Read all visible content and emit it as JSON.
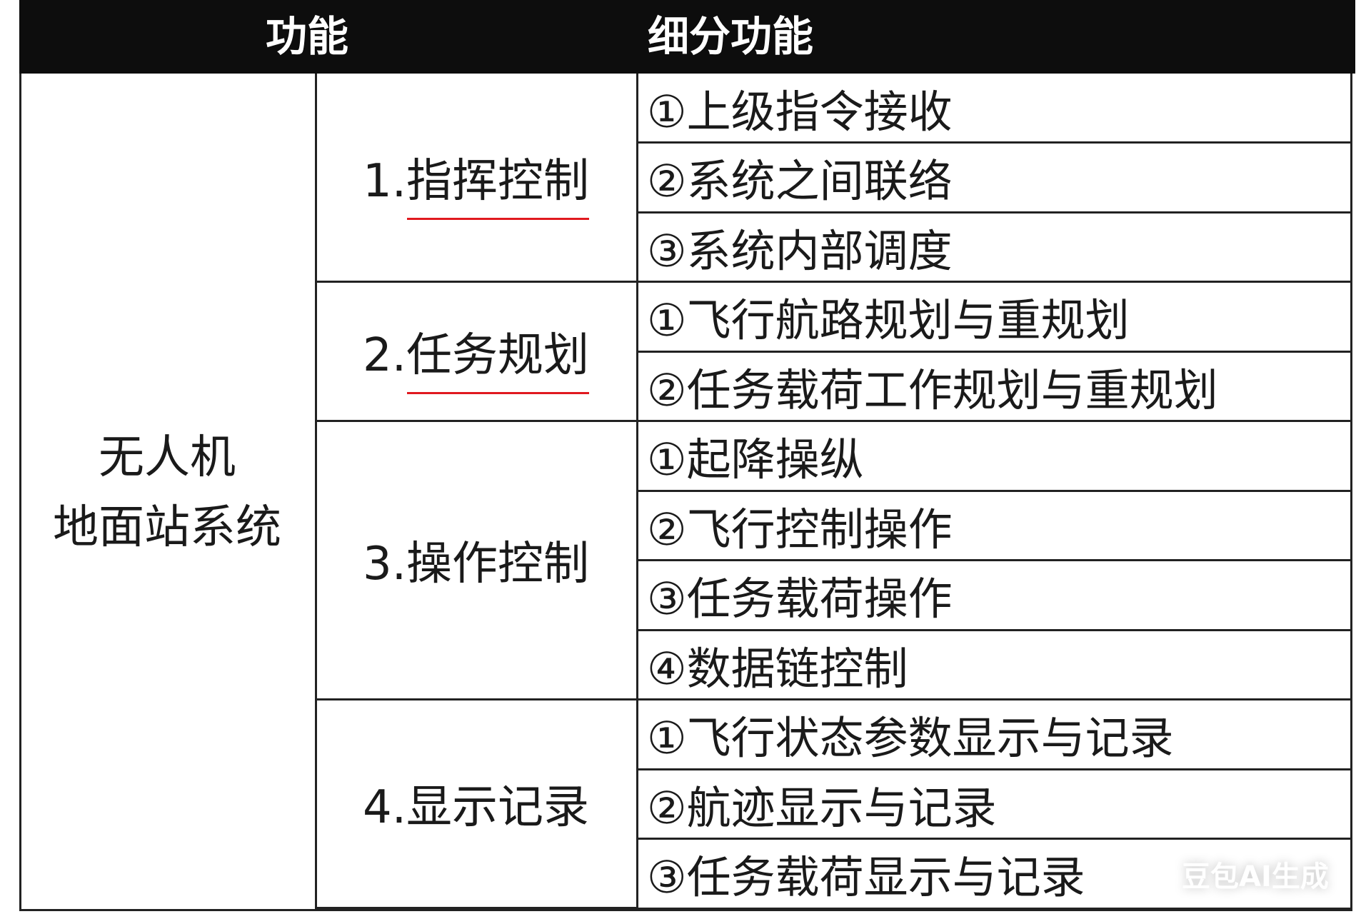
{
  "header": {
    "col_function": "功能",
    "col_subfunction": "细分功能"
  },
  "system": {
    "line1": "无人机",
    "line2": "地面站系统"
  },
  "functions": [
    {
      "label": "1.指挥控制",
      "underlined": true,
      "subs": [
        "①上级指令接收",
        "②系统之间联络",
        "③系统内部调度"
      ]
    },
    {
      "label": "2.任务规划",
      "underlined": true,
      "subs": [
        "①飞行航路规划与重规划",
        "②任务载荷工作规划与重规划"
      ]
    },
    {
      "label": "3.操作控制",
      "underlined": false,
      "subs": [
        "①起降操纵",
        "②飞行控制操作",
        "③任务载荷操作",
        "④数据链控制"
      ]
    },
    {
      "label": "4.显示记录",
      "underlined": false,
      "subs": [
        "①飞行状态参数显示与记录",
        "②航迹显示与记录",
        "③任务载荷显示与记录"
      ]
    }
  ],
  "colors": {
    "header_bg": "#0d0d0d",
    "underline": "#e0191f"
  },
  "watermark": "豆包AI生成"
}
